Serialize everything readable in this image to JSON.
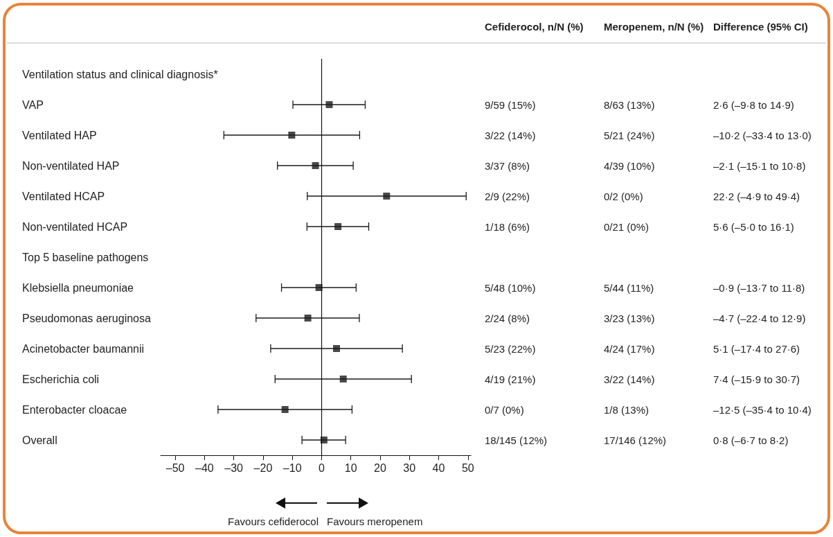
{
  "chart_data": {
    "type": "scatter",
    "orientation": "horizontal",
    "marker": "square",
    "color": "#1a1a1a",
    "categories": [
      "Ventilation status and clinical diagnosis*",
      "VAP",
      "Ventilated HAP",
      "Non-ventilated HAP",
      "Ventilated HCAP",
      "Non-ventilated HCAP",
      "Top 5 baseline pathogens",
      "Klebsiella pneumoniae",
      "Pseudomonas aeruginosa",
      "Acinetobacter baumannii",
      "Escherichia coli",
      "Enterobacter cloacae",
      "Overall"
    ],
    "values": [
      null,
      2.6,
      -10.2,
      -2.1,
      22.2,
      5.6,
      null,
      -0.9,
      -4.7,
      5.1,
      7.4,
      -12.5,
      0.8
    ],
    "errors": [
      null,
      [
        -9.8,
        14.9
      ],
      [
        -33.4,
        13.0
      ],
      [
        -15.1,
        10.8
      ],
      [
        -4.9,
        49.4
      ],
      [
        -5.0,
        16.1
      ],
      null,
      [
        -13.7,
        11.8
      ],
      [
        -22.4,
        12.9
      ],
      [
        -17.4,
        27.6
      ],
      [
        -15.9,
        30.7
      ],
      [
        -35.4,
        10.4
      ],
      [
        -6.7,
        8.2
      ]
    ],
    "xlim": [
      -55,
      51
    ],
    "xticks": [
      {
        "value": -50,
        "label": "–50"
      },
      {
        "value": -40,
        "label": "–40"
      },
      {
        "value": -30,
        "label": "–30"
      },
      {
        "value": -20,
        "label": "–20"
      },
      {
        "value": -10,
        "label": "–10"
      },
      0,
      10,
      20,
      30,
      40,
      50
    ],
    "ref_lines": [
      {
        "axis": "x",
        "value": 0
      }
    ],
    "annotations": [
      "Cefiderocol, n/N (%)",
      "Meropenem, n/N (%)",
      "Difference (95% CI)",
      "Favours cefiderocol",
      "Favours meropenem",
      "9/59 (15%)",
      "8/63 (13%)",
      "2·6 (–9·8 to 14·9)",
      "3/22 (14%)",
      "5/21 (24%)",
      "–10·2 (–33·4 to 13·0)",
      "3/37 (8%)",
      "4/39 (10%)",
      "–2·1 (–15·1 to 10·8)",
      "2/9 (22%)",
      "0/2 (0%)",
      "22·2 (–4·9 to 49·4)",
      "1/18 (6%)",
      "0/21 (0%)",
      "5·6 (–5·0 to 16·1)",
      "5/48 (10%)",
      "5/44 (11%)",
      "–0·9 (–13·7 to 11·8)",
      "2/24 (8%)",
      "3/23 (13%)",
      "–4·7 (–22·4 to 12·9)",
      "5/23 (22%)",
      "4/24 (17%)",
      "5·1 (–17·4 to 27·6)",
      "4/19 (21%)",
      "3/22 (14%)",
      "7·4 (–15·9 to 30·7)",
      "0/7 (0%)",
      "1/8 (13%)",
      "–12·5 (–35·4 to 10·4)",
      "18/145 (12%)",
      "17/146 (12%)",
      "0·8 (–6·7 to 8·2)"
    ]
  }
}
